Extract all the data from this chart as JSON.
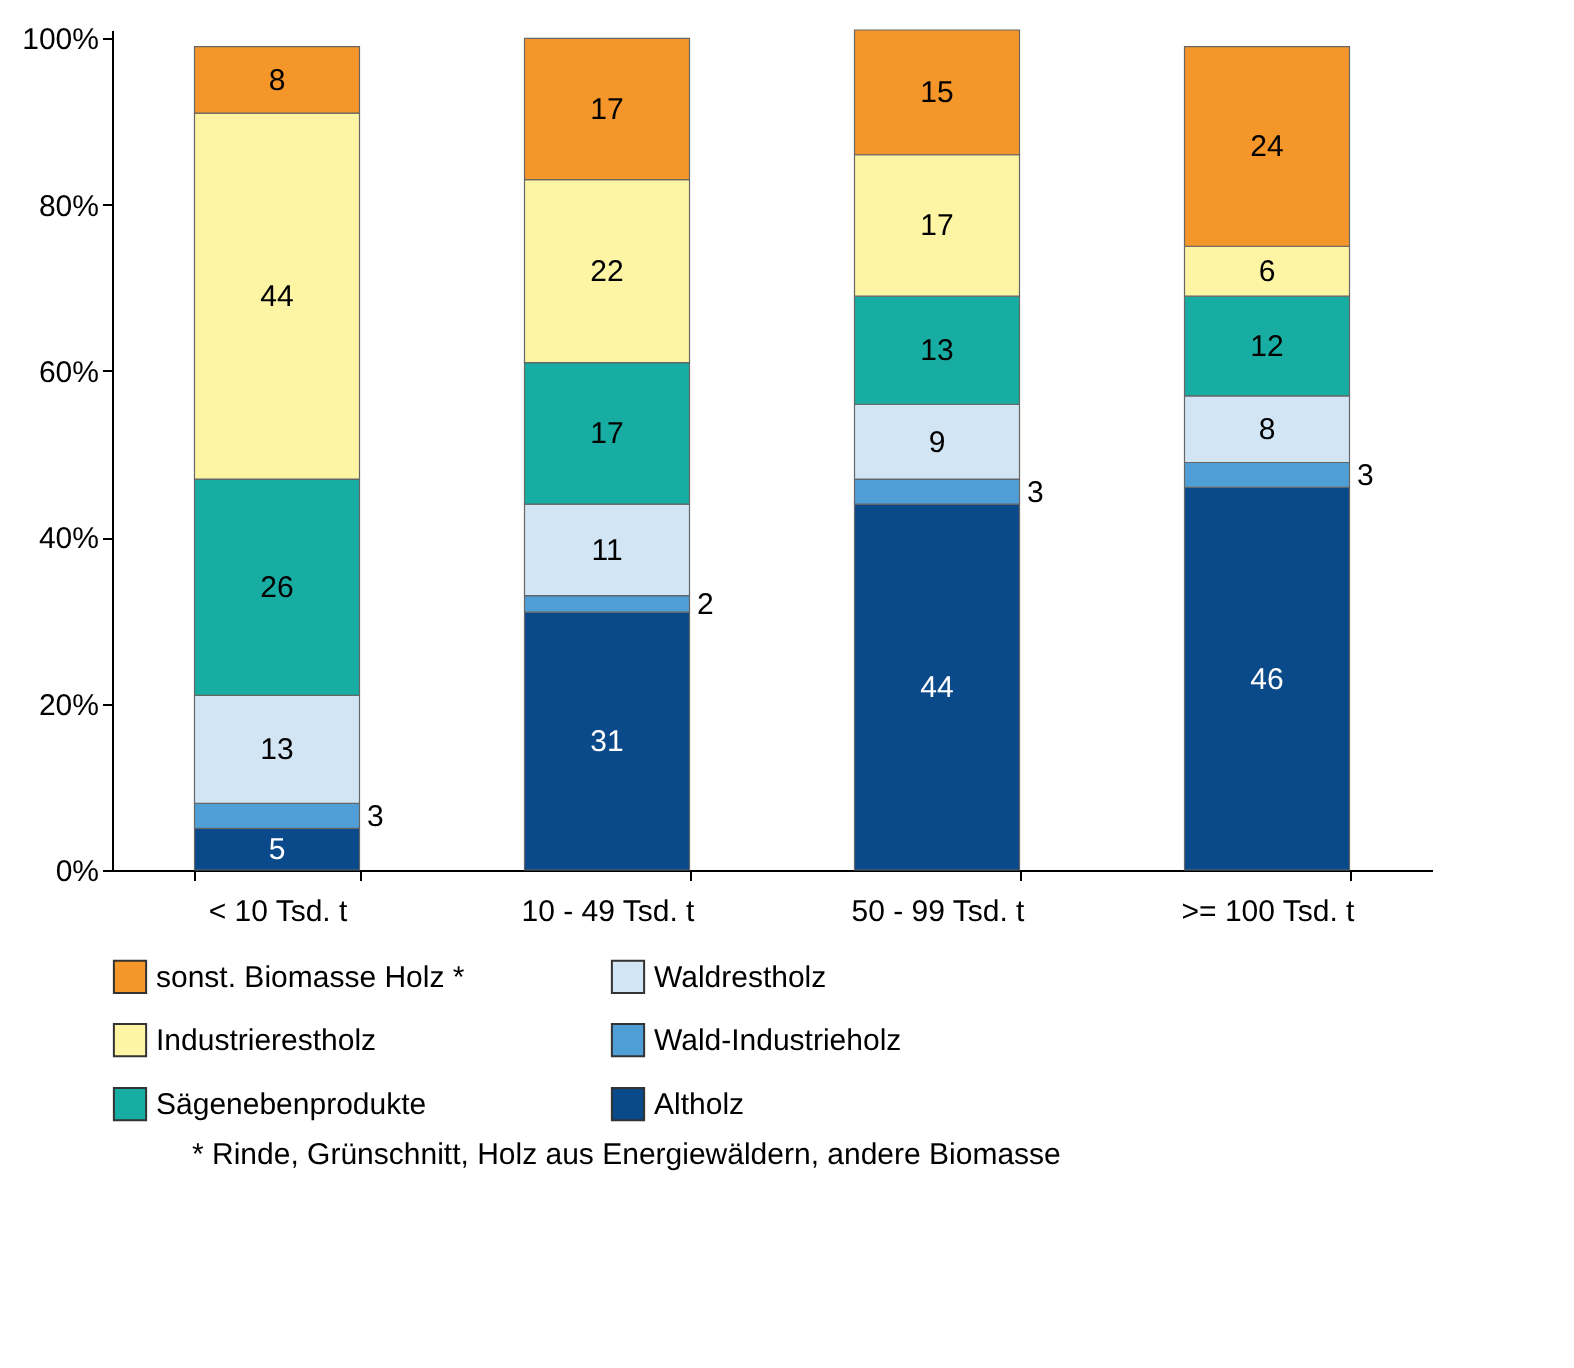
{
  "chart_data": {
    "type": "bar",
    "stacked": true,
    "categories": [
      "< 10 Tsd. t",
      "10 - 49 Tsd. t",
      "50 - 99 Tsd. t",
      ">= 100 Tsd. t"
    ],
    "series": [
      {
        "name": "Altholz",
        "color": "#0b4a8a",
        "values": [
          5,
          31,
          44,
          46
        ]
      },
      {
        "name": "Wald-Industrieholz",
        "color": "#4f9ed6",
        "values": [
          3,
          2,
          3,
          3
        ]
      },
      {
        "name": "Waldrestholz",
        "color": "#d2e5f4",
        "values": [
          13,
          11,
          9,
          8
        ]
      },
      {
        "name": "Sägenebenprodukte",
        "color": "#17ada3",
        "values": [
          26,
          17,
          13,
          12
        ]
      },
      {
        "name": "Industrierestholz",
        "color": "#fdf5a4",
        "values": [
          44,
          22,
          17,
          6
        ]
      },
      {
        "name": "sonst. Biomasse Holz *",
        "color": "#f5962a",
        "values": [
          8,
          17,
          15,
          24
        ]
      }
    ],
    "ylim": [
      0,
      101
    ],
    "yticks": [
      {
        "value": 0,
        "label": "0%"
      },
      {
        "value": 20,
        "label": "20%"
      },
      {
        "value": 40,
        "label": "40%"
      },
      {
        "value": 60,
        "label": "60%"
      },
      {
        "value": 80,
        "label": "80%"
      },
      {
        "value": 100,
        "label": "100%"
      }
    ],
    "data_labels": true,
    "grid": false,
    "legend": "bottom",
    "annotations": [
      "* Rinde, Grünschnitt, Holz aus Energiewäldern, andere Biomasse"
    ]
  }
}
